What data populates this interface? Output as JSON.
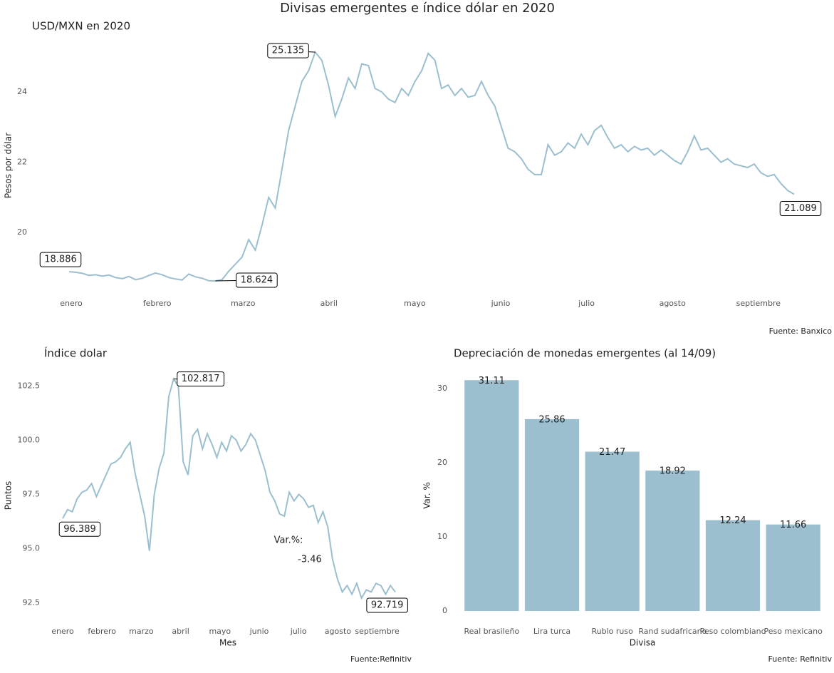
{
  "title": "Divisas emergentes e índice dólar en 2020",
  "chart_data": [
    {
      "type": "line",
      "title": "USD/MXN en 2020",
      "ylabel": "Pesos por dólar",
      "source": "Fuente: Banxico",
      "xticks": [
        "enero",
        "febrero",
        "marzo",
        "abril",
        "mayo",
        "junio",
        "julio",
        "agosto",
        "septiembre"
      ],
      "ylim": [
        18.3,
        25.4
      ],
      "yticks": [
        20,
        22,
        24
      ],
      "color": "#9bbfcf",
      "values": [
        18.886,
        18.87,
        18.84,
        18.78,
        18.8,
        18.76,
        18.79,
        18.72,
        18.69,
        18.75,
        18.66,
        18.7,
        18.78,
        18.85,
        18.8,
        18.72,
        18.68,
        18.65,
        18.82,
        18.74,
        18.7,
        18.63,
        18.624,
        18.66,
        18.9,
        19.1,
        19.3,
        19.8,
        19.5,
        20.2,
        21.0,
        20.7,
        21.8,
        22.9,
        23.6,
        24.3,
        24.6,
        25.135,
        24.9,
        24.2,
        23.3,
        23.8,
        24.4,
        24.1,
        24.8,
        24.75,
        24.1,
        24.0,
        23.8,
        23.7,
        24.1,
        23.9,
        24.3,
        24.6,
        25.1,
        24.9,
        24.1,
        24.2,
        23.9,
        24.1,
        23.85,
        23.9,
        24.3,
        23.9,
        23.6,
        23.0,
        22.4,
        22.3,
        22.1,
        21.8,
        21.65,
        21.65,
        22.5,
        22.2,
        22.3,
        22.55,
        22.4,
        22.8,
        22.5,
        22.9,
        23.05,
        22.7,
        22.4,
        22.5,
        22.3,
        22.45,
        22.35,
        22.4,
        22.2,
        22.35,
        22.2,
        22.05,
        21.95,
        22.3,
        22.75,
        22.35,
        22.4,
        22.2,
        22.0,
        22.1,
        21.95,
        21.9,
        21.85,
        21.95,
        21.7,
        21.6,
        21.65,
        21.4,
        21.2,
        21.089
      ],
      "annotations": [
        {
          "value": 18.886,
          "label": "18.886"
        },
        {
          "value": 25.135,
          "label": "25.135"
        },
        {
          "value": 18.624,
          "label": "18.624"
        },
        {
          "value": 21.089,
          "label": "21.089"
        }
      ]
    },
    {
      "type": "line",
      "title": "Índice dolar",
      "ylabel": "Puntos",
      "xlabel": "Mes",
      "source": "Fuente:Refinitiv",
      "xticks": [
        "enero",
        "febrero",
        "marzo",
        "abril",
        "mayo",
        "junio",
        "julio",
        "agosto",
        "septiembre"
      ],
      "ylim": [
        91.7,
        103.2
      ],
      "yticks": [
        92.5,
        {
          "value": 95,
          "label": "95.0"
        },
        97.5,
        {
          "value": 100,
          "label": "100.0"
        },
        102.5
      ],
      "color": "#9bbfcf",
      "values": [
        96.389,
        96.8,
        96.7,
        97.3,
        97.6,
        97.7,
        98.0,
        97.4,
        97.9,
        98.4,
        98.9,
        99.0,
        99.2,
        99.6,
        99.9,
        98.5,
        97.5,
        96.5,
        94.9,
        97.5,
        98.7,
        99.4,
        102.0,
        102.817,
        102.5,
        99.0,
        98.4,
        100.2,
        100.5,
        99.6,
        100.3,
        99.8,
        99.2,
        99.9,
        99.5,
        100.2,
        100.0,
        99.5,
        99.8,
        100.3,
        100.0,
        99.3,
        98.6,
        97.6,
        97.2,
        96.6,
        96.5,
        97.6,
        97.2,
        97.5,
        97.3,
        96.9,
        97.0,
        96.2,
        96.7,
        96.0,
        94.5,
        93.6,
        93.0,
        93.3,
        92.9,
        93.4,
        92.719,
        93.1,
        93.0,
        93.4,
        93.3,
        92.9,
        93.3,
        93.0
      ],
      "annotations": [
        {
          "value": 96.389,
          "label": "96.389"
        },
        {
          "value": 102.817,
          "label": "102.817"
        },
        {
          "value": 92.719,
          "label": "92.719"
        }
      ],
      "var_label": "Var.%:",
      "var_value": -3.46
    },
    {
      "type": "bar",
      "title": "Depreciación de monedas emergentes (al 14/09)",
      "ylabel": "Var. %",
      "xlabel": "Divisa",
      "source": "Fuente: Refinitiv",
      "categories": [
        "Real brasileño",
        "Lira turca",
        "Rublo ruso",
        "Rand sudafricano",
        "Peso colombiano",
        "Peso mexicano"
      ],
      "values": [
        31.11,
        25.86,
        21.47,
        18.92,
        12.24,
        11.66
      ],
      "ylim": [
        0,
        32
      ],
      "yticks": [
        0,
        10,
        20,
        30
      ],
      "color": "#9bbfcf"
    }
  ]
}
